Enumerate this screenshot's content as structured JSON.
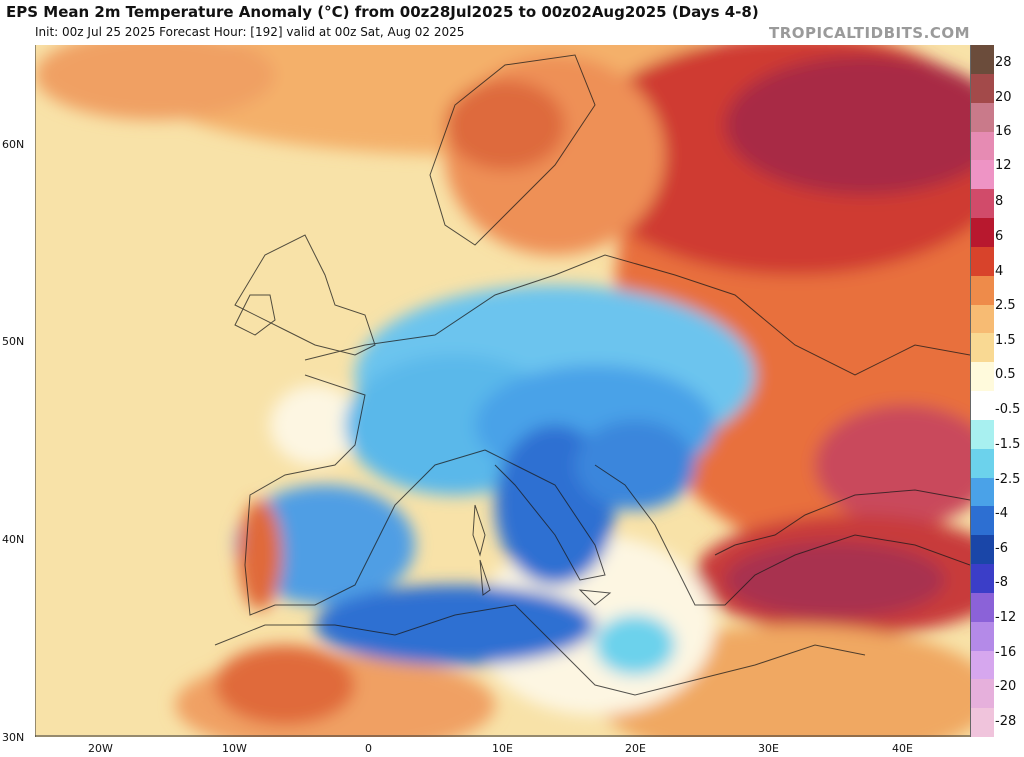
{
  "header": {
    "title": "EPS Mean 2m Temperature Anomaly (°C) from 00z28Jul2025 to 00z02Aug2025 (Days 4-8)",
    "subtitle": "Init: 00z Jul 25 2025   Forecast Hour: [192]   valid at 00z Sat, Aug 02 2025",
    "watermark": "TROPICALTIDBITS.COM"
  },
  "map": {
    "region": "Europe / Mediterranean",
    "lat_labels": [
      "60N",
      "50N",
      "40N",
      "30N"
    ],
    "lon_labels": [
      "20W",
      "10W",
      "0",
      "10E",
      "20E",
      "30E",
      "40E"
    ],
    "features": [
      {
        "name": "Strong warm anomaly, western Russia / Baltic",
        "level": "warm-strong"
      },
      {
        "name": "Strong warm anomaly, Turkey / Anatolia",
        "level": "warm-strong"
      },
      {
        "name": "Warm anomaly, Eastern Europe",
        "level": "warm"
      },
      {
        "name": "Cool anomaly, France / Central Europe",
        "level": "cool"
      },
      {
        "name": "Cool anomaly, Italy / Balkans",
        "level": "cool-strong"
      },
      {
        "name": "Cool anomaly, Spain interior",
        "level": "cool"
      },
      {
        "name": "Cool anomaly, Algeria / Tunisia coast",
        "level": "cool-strong"
      },
      {
        "name": "Warm anomaly, Portugal",
        "level": "warm"
      },
      {
        "name": "Warm anomaly, Scandinavia",
        "level": "warm"
      }
    ]
  },
  "colorbar": {
    "labels": [
      "28",
      "20",
      "16",
      "12",
      "8",
      "6",
      "4",
      "2.5",
      "1.5",
      "0.5",
      "-0.5",
      "-1.5",
      "-2.5",
      "-4",
      "-6",
      "-8",
      "-12",
      "-16",
      "-20",
      "-28"
    ],
    "colors": [
      "#6b4c3b",
      "#a34a4a",
      "#c97a8a",
      "#e68bb3",
      "#ee94c5",
      "#d14b6a",
      "#b8182e",
      "#d8432b",
      "#ee8b4a",
      "#f7bb73",
      "#f9d993",
      "#fffadc",
      "#ffffff",
      "#a8f0f0",
      "#6cd2ec",
      "#4aa2e8",
      "#2d6fd2",
      "#1a46a8",
      "#3b3ec8",
      "#8b62d8",
      "#b48ae8",
      "#d6a7ee",
      "#e6b0dc",
      "#f0c4dc"
    ]
  },
  "colors": {
    "land_base": "#f6dc9c",
    "sea_base": "#f7e6b4",
    "warm_strong": "#b8182e",
    "warm": "#e46c3c",
    "cool": "#5ab8ea",
    "cool_strong": "#2b6fcf"
  }
}
